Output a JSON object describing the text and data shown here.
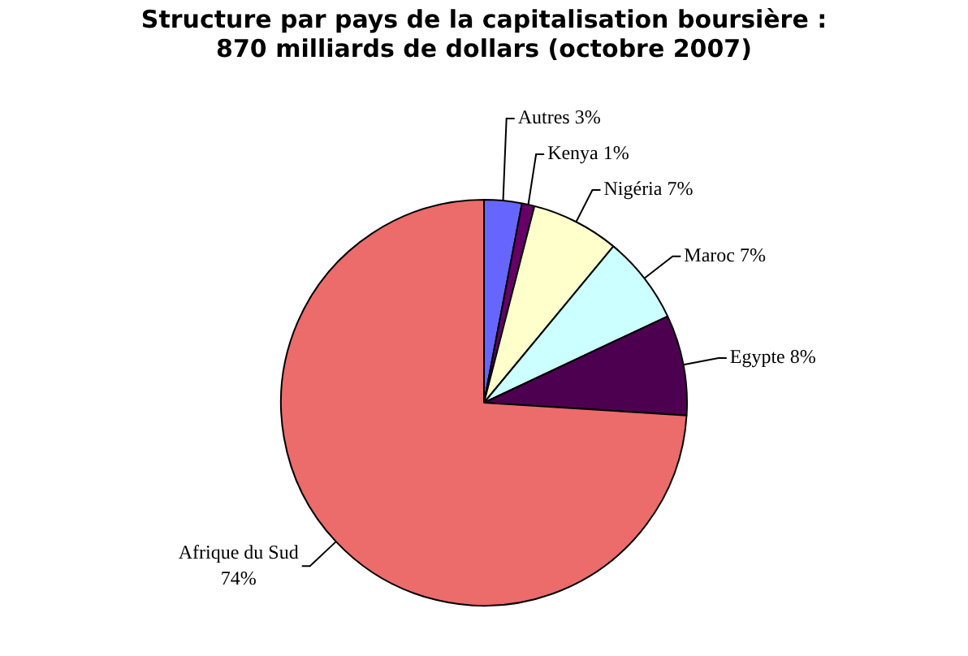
{
  "chart_data": {
    "type": "pie",
    "title": "Structure par pays de la capitalisation boursière : 870 milliards de dollars (octobre 2007)",
    "categories": [
      "Autres",
      "Kenya",
      "Nigéria",
      "Maroc",
      "Egypte",
      "Afrique du Sud"
    ],
    "values": [
      3,
      1,
      7,
      7,
      8,
      74
    ],
    "colors": [
      "#6666ff",
      "#660066",
      "#ffffcc",
      "#ccffff",
      "#4d0050",
      "#ec6b6b"
    ],
    "value_labels": [
      "3%",
      "1%",
      "7%",
      "7%",
      "8%",
      "74%"
    ],
    "legend": false
  }
}
